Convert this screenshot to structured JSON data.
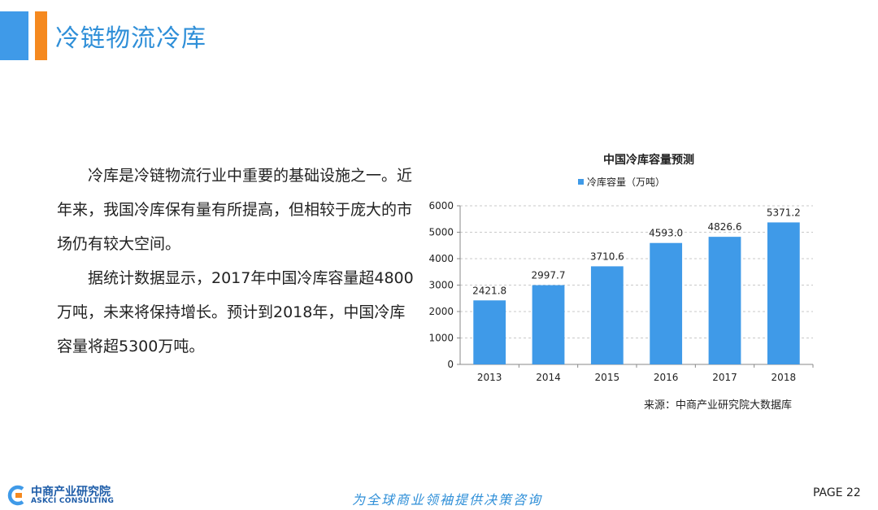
{
  "header": {
    "title": "冷链物流冷库"
  },
  "body": {
    "paragraphs": [
      "冷库是冷链物流行业中重要的基础设施之一。近年来，我国冷库保有量有所提高，但相较于庞大的市场仍有较大空间。",
      "据统计数据显示，2017年中国冷库容量超4800万吨，未来将保持增长。预计到2018年，中国冷库容量将超5300万吨。"
    ]
  },
  "chart_data": {
    "type": "bar",
    "title": "中国冷库容量预测",
    "categories": [
      "2013",
      "2014",
      "2015",
      "2016",
      "2017",
      "2018"
    ],
    "series": [
      {
        "name": "冷库容量（万吨）",
        "values": [
          2421.8,
          2997.7,
          3710.6,
          4593.0,
          4826.6,
          5371.2
        ]
      }
    ],
    "value_labels": [
      "2421.8",
      "2997.7",
      "3710.6",
      "4593.0",
      "4826.6",
      "5371.2"
    ],
    "yticks": [
      "0",
      "1000",
      "2000",
      "3000",
      "4000",
      "5000",
      "6000"
    ],
    "ylim": [
      0,
      6000
    ],
    "grid": true,
    "legend_position": "top",
    "bar_color": "#3f9ae8",
    "source": "来源：中商产业研究院大数据库"
  },
  "footer": {
    "logo_cn": "中商产业研究院",
    "logo_en": "ASKCI CONSULTING",
    "slogan": "为全球商业领袖提供决策咨询",
    "page": "PAGE  22"
  },
  "colors": {
    "accent_blue": "#3f9ae8",
    "accent_orange": "#f5891f",
    "title_blue": "#2f8fd8",
    "logo_blue": "#1d5ca8"
  }
}
